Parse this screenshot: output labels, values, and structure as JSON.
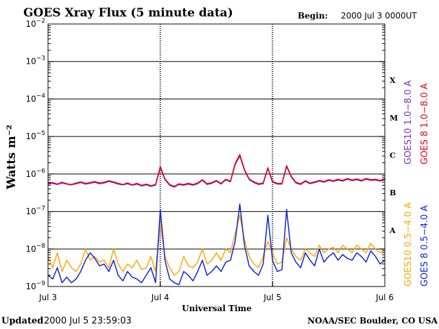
{
  "header": {
    "title": "GOES Xray Flux (5 minute data)",
    "begin_label": "Begin:",
    "begin_value": "2000 Jul 3 0000UT"
  },
  "footer": {
    "updated_label": "Updated",
    "updated_value": "2000 Jul  5 23:59:03",
    "credit": "NOAA/SEC Boulder, CO USA"
  },
  "colors": {
    "goes10_long": "#7b2fbf",
    "goes8_long": "#e0001a",
    "goes10_short": "#ffa500",
    "goes8_short": "#0a23d9",
    "axis": "#000000"
  },
  "chart_data": {
    "type": "line",
    "title": "GOES Xray Flux (5 minute data)",
    "xlabel": "Universal Time",
    "ylabel": "Watts m⁻²",
    "yscale": "log",
    "ylim": [
      1e-09,
      0.01
    ],
    "xlim": [
      0,
      72
    ],
    "x_unit": "hours since 2000 Jul 3 0000UT",
    "x_ticks": [
      {
        "x": 0,
        "label": "Jul 3"
      },
      {
        "x": 24,
        "label": "Jul 4"
      },
      {
        "x": 48,
        "label": "Jul 5"
      },
      {
        "x": 72,
        "label": "Jul 6"
      }
    ],
    "y_ticks": [
      {
        "exp": -2,
        "base": "10",
        "sup": "−2"
      },
      {
        "exp": -3,
        "base": "10",
        "sup": "−3"
      },
      {
        "exp": -4,
        "base": "10",
        "sup": "−4"
      },
      {
        "exp": -5,
        "base": "10",
        "sup": "−5"
      },
      {
        "exp": -6,
        "base": "10",
        "sup": "−6"
      },
      {
        "exp": -7,
        "base": "10",
        "sup": "−7"
      },
      {
        "exp": -8,
        "base": "10",
        "sup": "−8"
      },
      {
        "exp": -9,
        "base": "10",
        "sup": "−9"
      }
    ],
    "flare_classes": [
      {
        "label": "X",
        "exp": -3.5
      },
      {
        "label": "M",
        "exp": -4.5
      },
      {
        "label": "C",
        "exp": -5.5
      },
      {
        "label": "B",
        "exp": -6.5
      },
      {
        "label": "A",
        "exp": -7.5
      }
    ],
    "grid": true,
    "legend_position": "right",
    "series": [
      {
        "name": "GOES10 1.0−8.0 A",
        "color": "#7b2fbf",
        "band": "long",
        "points": [
          [
            0,
            -6.27
          ],
          [
            1,
            -6.25
          ],
          [
            2,
            -6.28
          ],
          [
            3,
            -6.24
          ],
          [
            4,
            -6.27
          ],
          [
            5,
            -6.29
          ],
          [
            6,
            -6.26
          ],
          [
            7,
            -6.23
          ],
          [
            8,
            -6.27
          ],
          [
            9,
            -6.25
          ],
          [
            10,
            -6.22
          ],
          [
            11,
            -6.26
          ],
          [
            12,
            -6.24
          ],
          [
            13,
            -6.2
          ],
          [
            14,
            -6.23
          ],
          [
            15,
            -6.27
          ],
          [
            16,
            -6.29
          ],
          [
            17,
            -6.26
          ],
          [
            18,
            -6.3
          ],
          [
            19,
            -6.27
          ],
          [
            20,
            -6.32
          ],
          [
            21,
            -6.29
          ],
          [
            22,
            -6.33
          ],
          [
            23,
            -6.3
          ],
          [
            24,
            -5.83
          ],
          [
            25,
            -6.15
          ],
          [
            26,
            -6.3
          ],
          [
            27,
            -6.35
          ],
          [
            28,
            -6.28
          ],
          [
            29,
            -6.3
          ],
          [
            30,
            -6.27
          ],
          [
            31,
            -6.3
          ],
          [
            32,
            -6.26
          ],
          [
            33,
            -6.17
          ],
          [
            34,
            -6.28
          ],
          [
            35,
            -6.25
          ],
          [
            36,
            -6.19
          ],
          [
            37,
            -6.27
          ],
          [
            38,
            -6.16
          ],
          [
            39,
            -6.21
          ],
          [
            40,
            -5.75
          ],
          [
            41,
            -5.52
          ],
          [
            42,
            -5.9
          ],
          [
            43,
            -6.15
          ],
          [
            44,
            -6.23
          ],
          [
            45,
            -6.28
          ],
          [
            46,
            -6.26
          ],
          [
            47,
            -5.85
          ],
          [
            48,
            -6.22
          ],
          [
            49,
            -6.27
          ],
          [
            50,
            -6.27
          ],
          [
            51,
            -5.8
          ],
          [
            52,
            -6.08
          ],
          [
            53,
            -6.24
          ],
          [
            54,
            -6.28
          ],
          [
            55,
            -6.2
          ],
          [
            56,
            -6.26
          ],
          [
            57,
            -6.23
          ],
          [
            58,
            -6.19
          ],
          [
            59,
            -6.22
          ],
          [
            60,
            -6.17
          ],
          [
            61,
            -6.2
          ],
          [
            62,
            -6.16
          ],
          [
            63,
            -6.19
          ],
          [
            64,
            -6.14
          ],
          [
            65,
            -6.18
          ],
          [
            66,
            -6.15
          ],
          [
            67,
            -6.19
          ],
          [
            68,
            -6.14
          ],
          [
            69,
            -6.17
          ],
          [
            70,
            -6.16
          ],
          [
            71,
            -6.19
          ],
          [
            72,
            -6.15
          ]
        ]
      },
      {
        "name": "GOES 8 1.0−8.0 A",
        "color": "#e0001a",
        "band": "long",
        "points": [
          [
            0,
            -6.25
          ],
          [
            1,
            -6.23
          ],
          [
            2,
            -6.27
          ],
          [
            3,
            -6.22
          ],
          [
            4,
            -6.26
          ],
          [
            5,
            -6.28
          ],
          [
            6,
            -6.24
          ],
          [
            7,
            -6.21
          ],
          [
            8,
            -6.25
          ],
          [
            9,
            -6.23
          ],
          [
            10,
            -6.2
          ],
          [
            11,
            -6.24
          ],
          [
            12,
            -6.22
          ],
          [
            13,
            -6.18
          ],
          [
            14,
            -6.21
          ],
          [
            15,
            -6.25
          ],
          [
            16,
            -6.28
          ],
          [
            17,
            -6.24
          ],
          [
            18,
            -6.29
          ],
          [
            19,
            -6.25
          ],
          [
            20,
            -6.3
          ],
          [
            21,
            -6.27
          ],
          [
            22,
            -6.31
          ],
          [
            23,
            -6.28
          ],
          [
            24,
            -5.8
          ],
          [
            25,
            -6.13
          ],
          [
            26,
            -6.28
          ],
          [
            27,
            -6.33
          ],
          [
            28,
            -6.26
          ],
          [
            29,
            -6.28
          ],
          [
            30,
            -6.25
          ],
          [
            31,
            -6.28
          ],
          [
            32,
            -6.24
          ],
          [
            33,
            -6.15
          ],
          [
            34,
            -6.26
          ],
          [
            35,
            -6.23
          ],
          [
            36,
            -6.17
          ],
          [
            37,
            -6.25
          ],
          [
            38,
            -6.14
          ],
          [
            39,
            -6.19
          ],
          [
            40,
            -5.72
          ],
          [
            41,
            -5.48
          ],
          [
            42,
            -5.88
          ],
          [
            43,
            -6.13
          ],
          [
            44,
            -6.21
          ],
          [
            45,
            -6.26
          ],
          [
            46,
            -6.24
          ],
          [
            47,
            -5.83
          ],
          [
            48,
            -6.2
          ],
          [
            49,
            -6.25
          ],
          [
            50,
            -6.25
          ],
          [
            51,
            -5.78
          ],
          [
            52,
            -6.06
          ],
          [
            53,
            -6.22
          ],
          [
            54,
            -6.26
          ],
          [
            55,
            -6.18
          ],
          [
            56,
            -6.24
          ],
          [
            57,
            -6.21
          ],
          [
            58,
            -6.17
          ],
          [
            59,
            -6.2
          ],
          [
            60,
            -6.15
          ],
          [
            61,
            -6.18
          ],
          [
            62,
            -6.14
          ],
          [
            63,
            -6.17
          ],
          [
            64,
            -6.12
          ],
          [
            65,
            -6.16
          ],
          [
            66,
            -6.13
          ],
          [
            67,
            -6.17
          ],
          [
            68,
            -6.12
          ],
          [
            69,
            -6.15
          ],
          [
            70,
            -6.14
          ],
          [
            71,
            -6.17
          ],
          [
            72,
            -6.13
          ]
        ]
      },
      {
        "name": "GOES10 0.5−4.0 A",
        "color": "#ffa500",
        "band": "short",
        "points": [
          [
            0,
            -8.2
          ],
          [
            1,
            -8.5
          ],
          [
            2,
            -8.1
          ],
          [
            3,
            -8.6
          ],
          [
            4,
            -8.3
          ],
          [
            5,
            -8.5
          ],
          [
            6,
            -8.6
          ],
          [
            7,
            -8.4
          ],
          [
            8,
            -8.0
          ],
          [
            9,
            -8.3
          ],
          [
            10,
            -8.2
          ],
          [
            11,
            -8.35
          ],
          [
            12,
            -8.3
          ],
          [
            13,
            -8.5
          ],
          [
            14,
            -8.0
          ],
          [
            15,
            -8.4
          ],
          [
            16,
            -8.6
          ],
          [
            17,
            -8.4
          ],
          [
            18,
            -8.5
          ],
          [
            19,
            -8.3
          ],
          [
            20,
            -8.55
          ],
          [
            21,
            -8.5
          ],
          [
            22,
            -8.2
          ],
          [
            23,
            -8.6
          ],
          [
            24,
            -7.3
          ],
          [
            25,
            -8.2
          ],
          [
            26,
            -8.5
          ],
          [
            27,
            -8.7
          ],
          [
            28,
            -8.6
          ],
          [
            29,
            -8.2
          ],
          [
            30,
            -8.45
          ],
          [
            31,
            -8.5
          ],
          [
            32,
            -8.35
          ],
          [
            33,
            -8.0
          ],
          [
            34,
            -8.4
          ],
          [
            35,
            -8.3
          ],
          [
            36,
            -8.1
          ],
          [
            37,
            -8.3
          ],
          [
            38,
            -8.0
          ],
          [
            39,
            -8.1
          ],
          [
            40,
            -7.6
          ],
          [
            41,
            -7.1
          ],
          [
            42,
            -7.75
          ],
          [
            43,
            -8.2
          ],
          [
            44,
            -8.4
          ],
          [
            45,
            -8.5
          ],
          [
            46,
            -8.2
          ],
          [
            47,
            -7.8
          ],
          [
            48,
            -8.1
          ],
          [
            49,
            -8.4
          ],
          [
            50,
            -8.35
          ],
          [
            51,
            -7.7
          ],
          [
            52,
            -8.0
          ],
          [
            53,
            -8.2
          ],
          [
            54,
            -8.3
          ],
          [
            55,
            -8.0
          ],
          [
            56,
            -8.1
          ],
          [
            57,
            -8.2
          ],
          [
            58,
            -7.9
          ],
          [
            59,
            -8.1
          ],
          [
            60,
            -8.0
          ],
          [
            61,
            -7.95
          ],
          [
            62,
            -8.1
          ],
          [
            63,
            -7.9
          ],
          [
            64,
            -8.0
          ],
          [
            65,
            -8.1
          ],
          [
            66,
            -7.9
          ],
          [
            67,
            -8.0
          ],
          [
            68,
            -8.1
          ],
          [
            69,
            -7.85
          ],
          [
            70,
            -8.0
          ],
          [
            71,
            -8.1
          ],
          [
            72,
            -8.0
          ]
        ]
      },
      {
        "name": "GOES 8 0.5−4.0 A",
        "color": "#0a23d9",
        "band": "short",
        "points": [
          [
            0,
            -8.7
          ],
          [
            1,
            -8.8
          ],
          [
            2,
            -8.5
          ],
          [
            3,
            -8.9
          ],
          [
            4,
            -8.75
          ],
          [
            5,
            -8.9
          ],
          [
            6,
            -8.8
          ],
          [
            7,
            -8.6
          ],
          [
            8,
            -8.3
          ],
          [
            9,
            -8.1
          ],
          [
            10,
            -8.25
          ],
          [
            11,
            -8.45
          ],
          [
            12,
            -8.4
          ],
          [
            13,
            -8.6
          ],
          [
            14,
            -8.3
          ],
          [
            15,
            -8.7
          ],
          [
            16,
            -8.85
          ],
          [
            17,
            -8.6
          ],
          [
            18,
            -8.75
          ],
          [
            19,
            -8.8
          ],
          [
            20,
            -8.9
          ],
          [
            21,
            -8.7
          ],
          [
            22,
            -8.5
          ],
          [
            23,
            -8.9
          ],
          [
            24,
            -6.95
          ],
          [
            25,
            -8.3
          ],
          [
            26,
            -8.8
          ],
          [
            27,
            -8.9
          ],
          [
            28,
            -8.95
          ],
          [
            29,
            -8.6
          ],
          [
            30,
            -8.7
          ],
          [
            31,
            -8.85
          ],
          [
            32,
            -8.6
          ],
          [
            33,
            -8.3
          ],
          [
            34,
            -8.7
          ],
          [
            35,
            -8.6
          ],
          [
            36,
            -8.45
          ],
          [
            37,
            -8.6
          ],
          [
            38,
            -8.35
          ],
          [
            39,
            -8.3
          ],
          [
            40,
            -7.8
          ],
          [
            41,
            -6.8
          ],
          [
            42,
            -7.9
          ],
          [
            43,
            -8.45
          ],
          [
            44,
            -8.6
          ],
          [
            45,
            -8.7
          ],
          [
            46,
            -8.4
          ],
          [
            47,
            -7.1
          ],
          [
            48,
            -8.3
          ],
          [
            49,
            -8.6
          ],
          [
            50,
            -8.55
          ],
          [
            51,
            -6.95
          ],
          [
            52,
            -8.1
          ],
          [
            53,
            -8.35
          ],
          [
            54,
            -8.5
          ],
          [
            55,
            -8.1
          ],
          [
            56,
            -8.3
          ],
          [
            57,
            -8.45
          ],
          [
            58,
            -8.0
          ],
          [
            59,
            -8.35
          ],
          [
            60,
            -8.2
          ],
          [
            61,
            -8.1
          ],
          [
            62,
            -8.3
          ],
          [
            63,
            -8.15
          ],
          [
            64,
            -8.25
          ],
          [
            65,
            -8.3
          ],
          [
            66,
            -8.1
          ],
          [
            67,
            -8.2
          ],
          [
            68,
            -8.35
          ],
          [
            69,
            -8.05
          ],
          [
            70,
            -8.2
          ],
          [
            71,
            -8.4
          ],
          [
            72,
            -8.3
          ]
        ]
      }
    ]
  }
}
